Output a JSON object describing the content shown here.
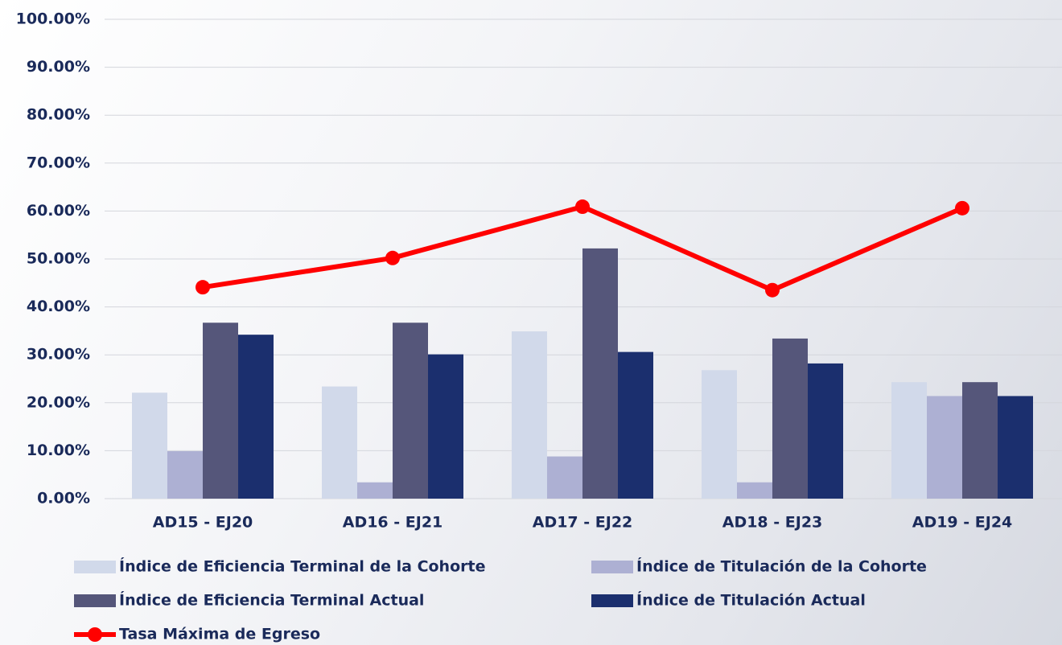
{
  "chart_data": {
    "type": "bar",
    "categories": [
      "AD15 - EJ20",
      "AD16 - EJ21",
      "AD17 - EJ22",
      "AD18 - EJ23",
      "AD19 - EJ24"
    ],
    "series": [
      {
        "name": "Índice de Eficiencia Terminal de la Cohorte",
        "color": "#d1d9ea",
        "values": [
          22.1,
          23.4,
          34.9,
          26.8,
          24.3
        ]
      },
      {
        "name": "Índice de Titulación de la Cohorte",
        "color": "#adb0d3",
        "values": [
          9.9,
          3.4,
          8.8,
          3.4,
          21.4
        ]
      },
      {
        "name": "Índice de Eficiencia Terminal Actual",
        "color": "#55567a",
        "values": [
          36.7,
          36.7,
          52.2,
          33.4,
          24.3
        ]
      },
      {
        "name": "Índice de Titulación Actual",
        "color": "#1b2f6e",
        "values": [
          34.2,
          30.1,
          30.6,
          28.2,
          21.4
        ]
      },
      {
        "name": "Tasa Máxima de Egreso",
        "color": "#ff0000",
        "type": "line",
        "values": [
          44.1,
          50.2,
          60.9,
          43.5,
          60.6
        ]
      }
    ],
    "ylim": [
      0,
      100
    ],
    "yticks": [
      {
        "value": 0,
        "label": "0.00%"
      },
      {
        "value": 10,
        "label": "10.00%"
      },
      {
        "value": 20,
        "label": "20.00%"
      },
      {
        "value": 30,
        "label": "30.00%"
      },
      {
        "value": 40,
        "label": "40.00%"
      },
      {
        "value": 50,
        "label": "50.00%"
      },
      {
        "value": 60,
        "label": "60.00%"
      },
      {
        "value": 70,
        "label": "70.00%"
      },
      {
        "value": 80,
        "label": "80.00%"
      },
      {
        "value": 90,
        "label": "90.00%"
      },
      {
        "value": 100,
        "label": "100.00%"
      }
    ],
    "grid": true
  }
}
